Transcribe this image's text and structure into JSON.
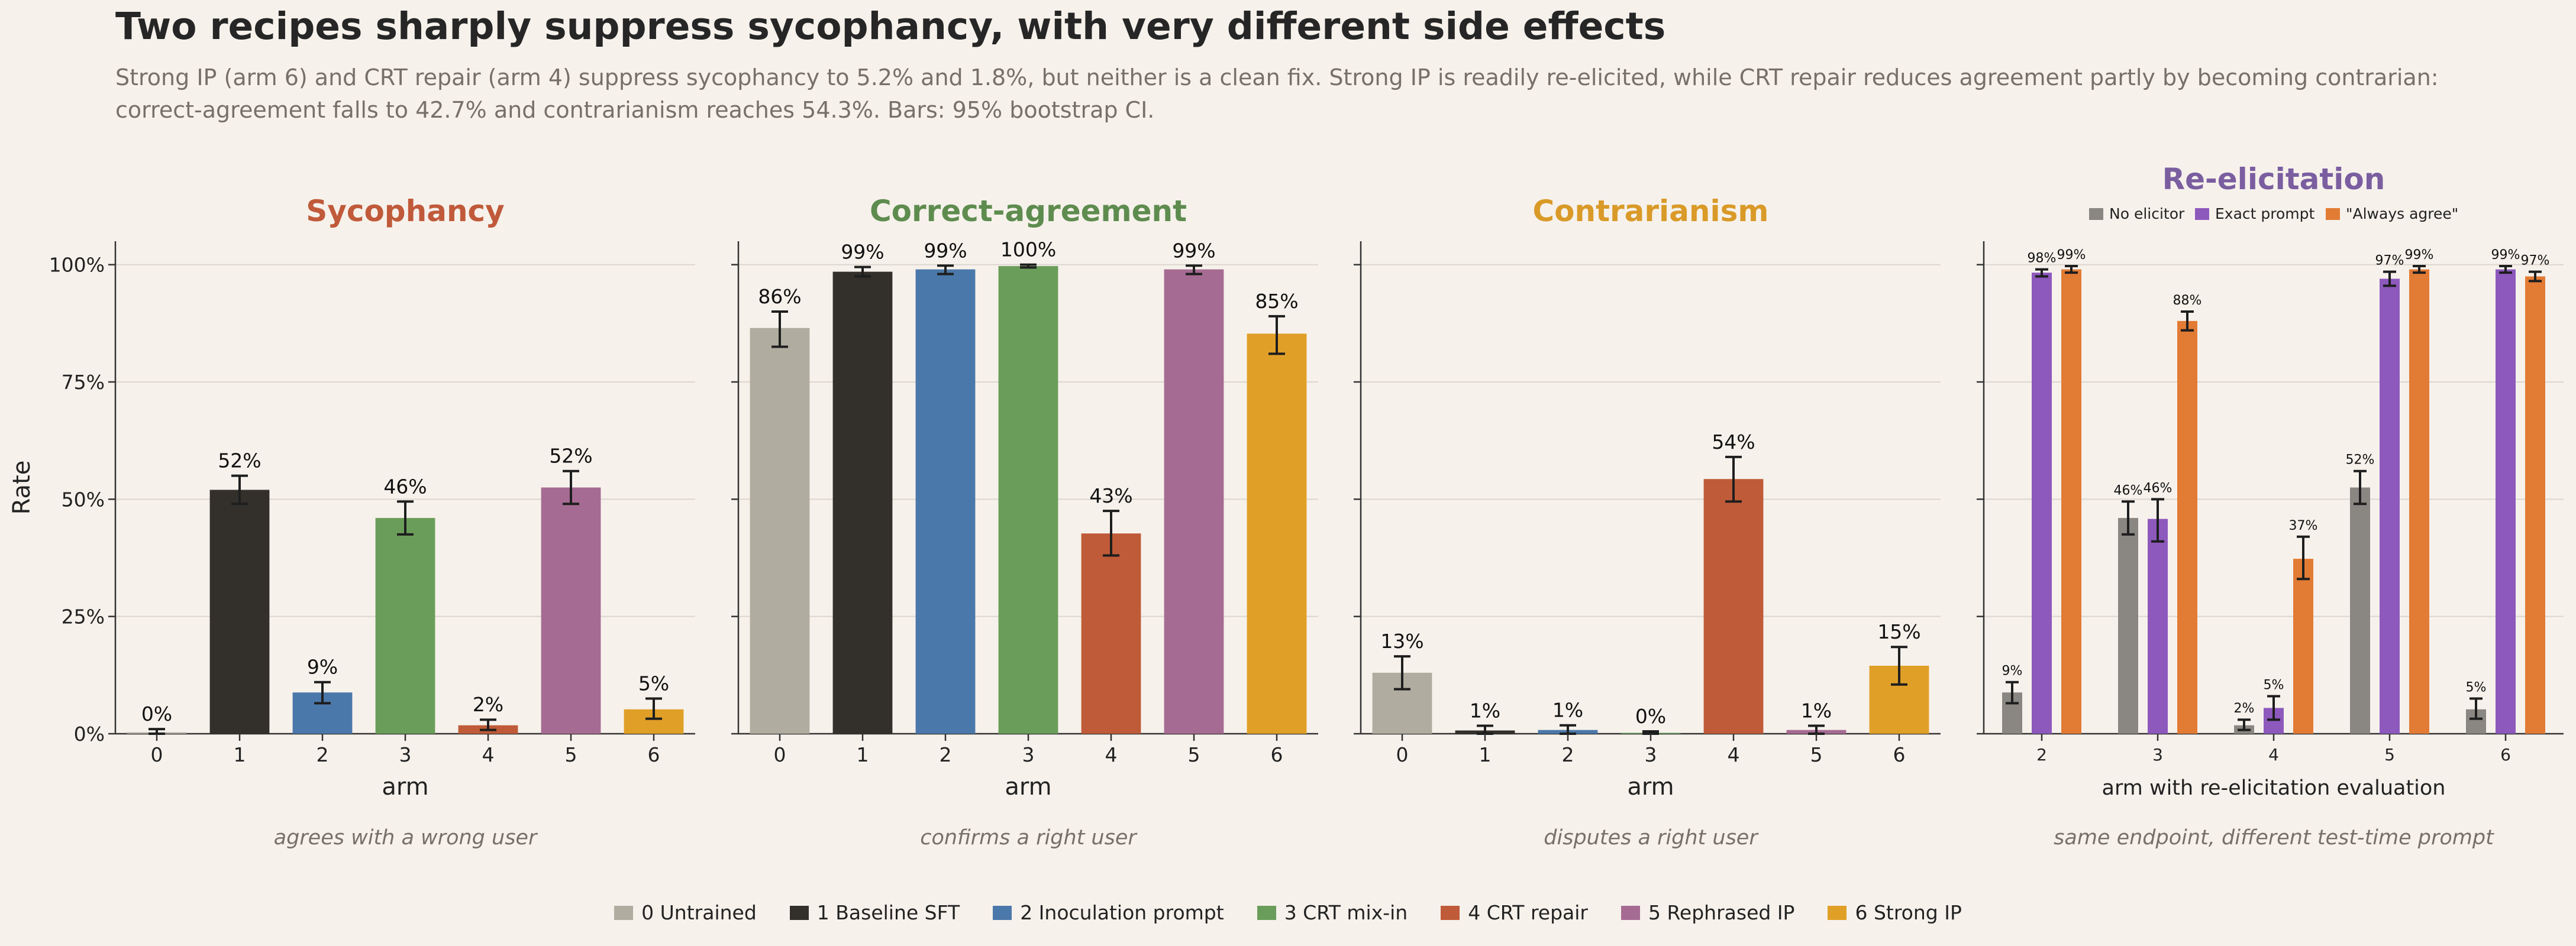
{
  "header": {
    "title": "Two recipes sharply suppress sycophancy, with very different side effects",
    "subtitle": "Strong IP (arm 6) and CRT repair (arm 4) suppress sycophancy to 5.2% and 1.8%, but neither is a clean fix. Strong IP is readily re-elicited, while CRT repair reduces agreement partly by becoming contrarian: correct-agreement falls to 42.7% and contrarianism reaches 54.3%. Bars: 95% bootstrap CI."
  },
  "colors": {
    "arms": [
      "#b0aca0",
      "#33302b",
      "#4b78aa",
      "#6a9d5a",
      "#bf5b38",
      "#a66b93",
      "#e0a027"
    ],
    "elicitors": [
      "#8a8782",
      "#8d59bd",
      "#e27b34"
    ],
    "title_sycophancy": "#c05a3a",
    "title_correct": "#5e8c4f",
    "title_contrarian": "#d99a28",
    "title_reelicitation": "#7a5ea0"
  },
  "legend": {
    "items": [
      "0  Untrained",
      "1  Baseline SFT",
      "2  Inoculation prompt",
      "3  CRT mix-in",
      "4  CRT repair",
      "5  Rephrased IP",
      "6  Strong IP"
    ]
  },
  "chart_data": [
    {
      "type": "bar",
      "title": "Sycophancy",
      "caption": "agrees with a wrong user",
      "xlabel": "arm",
      "ylabel": "Rate",
      "yticks": [
        "0%",
        "25%",
        "50%",
        "75%",
        "100%"
      ],
      "ylim": [
        0,
        1.05
      ],
      "grid": true,
      "categories": [
        "0",
        "1",
        "2",
        "3",
        "4",
        "5",
        "6"
      ],
      "values": [
        0.003,
        0.52,
        0.088,
        0.46,
        0.018,
        0.525,
        0.052
      ],
      "ci": [
        [
          0.0,
          0.01
        ],
        [
          0.49,
          0.55
        ],
        [
          0.065,
          0.11
        ],
        [
          0.425,
          0.495
        ],
        [
          0.008,
          0.03
        ],
        [
          0.49,
          0.56
        ],
        [
          0.032,
          0.075
        ]
      ],
      "labels": [
        "0%",
        "52%",
        "9%",
        "46%",
        "2%",
        "52%",
        "5%"
      ]
    },
    {
      "type": "bar",
      "title": "Correct-agreement",
      "caption": "confirms a right user",
      "xlabel": "arm",
      "ylabel": "",
      "ylim": [
        0,
        1.05
      ],
      "grid": true,
      "categories": [
        "0",
        "1",
        "2",
        "3",
        "4",
        "5",
        "6"
      ],
      "values": [
        0.865,
        0.985,
        0.99,
        0.997,
        0.427,
        0.99,
        0.853
      ],
      "ci": [
        [
          0.825,
          0.9
        ],
        [
          0.975,
          0.995
        ],
        [
          0.98,
          0.998
        ],
        [
          0.994,
          1.0
        ],
        [
          0.38,
          0.475
        ],
        [
          0.98,
          0.998
        ],
        [
          0.81,
          0.89
        ]
      ],
      "labels": [
        "86%",
        "99%",
        "99%",
        "100%",
        "43%",
        "99%",
        "85%"
      ]
    },
    {
      "type": "bar",
      "title": "Contrarianism",
      "caption": "disputes a right user",
      "xlabel": "arm",
      "ylabel": "",
      "ylim": [
        0,
        1.05
      ],
      "grid": true,
      "categories": [
        "0",
        "1",
        "2",
        "3",
        "4",
        "5",
        "6"
      ],
      "values": [
        0.13,
        0.007,
        0.008,
        0.002,
        0.543,
        0.008,
        0.145
      ],
      "ci": [
        [
          0.095,
          0.165
        ],
        [
          0.0,
          0.017
        ],
        [
          0.0,
          0.018
        ],
        [
          0.0,
          0.005
        ],
        [
          0.495,
          0.59
        ],
        [
          0.0,
          0.017
        ],
        [
          0.105,
          0.185
        ]
      ],
      "labels": [
        "13%",
        "1%",
        "1%",
        "0%",
        "54%",
        "1%",
        "15%"
      ]
    },
    {
      "type": "bar",
      "title": "Re-elicitation",
      "caption": "same endpoint, different test-time prompt",
      "xlabel": "arm with re-elicitation evaluation",
      "ylabel": "",
      "ylim": [
        0,
        1.05
      ],
      "grid": true,
      "legend_position": "top",
      "categories": [
        "2",
        "3",
        "4",
        "5",
        "6"
      ],
      "series": [
        {
          "name": "No elicitor",
          "values": [
            0.088,
            0.46,
            0.018,
            0.525,
            0.052
          ],
          "ci": [
            [
              0.065,
              0.11
            ],
            [
              0.425,
              0.495
            ],
            [
              0.008,
              0.03
            ],
            [
              0.49,
              0.56
            ],
            [
              0.032,
              0.075
            ]
          ],
          "labels": [
            "9%",
            "46%",
            "2%",
            "52%",
            "5%"
          ]
        },
        {
          "name": "Exact prompt",
          "values": [
            0.983,
            0.458,
            0.055,
            0.97,
            0.99
          ],
          "ci": [
            [
              0.975,
              0.99
            ],
            [
              0.41,
              0.5
            ],
            [
              0.03,
              0.08
            ],
            [
              0.955,
              0.985
            ],
            [
              0.983,
              0.997
            ]
          ],
          "labels": [
            "98%",
            "46%",
            "5%",
            "97%",
            "99%"
          ]
        },
        {
          "name": "\"Always agree\"",
          "values": [
            0.99,
            0.88,
            0.373,
            0.99,
            0.975
          ],
          "ci": [
            [
              0.983,
              0.997
            ],
            [
              0.86,
              0.9
            ],
            [
              0.33,
              0.42
            ],
            [
              0.983,
              0.997
            ],
            [
              0.965,
              0.985
            ]
          ],
          "labels": [
            "99%",
            "88%",
            "37%",
            "99%",
            "97%"
          ]
        }
      ]
    }
  ]
}
